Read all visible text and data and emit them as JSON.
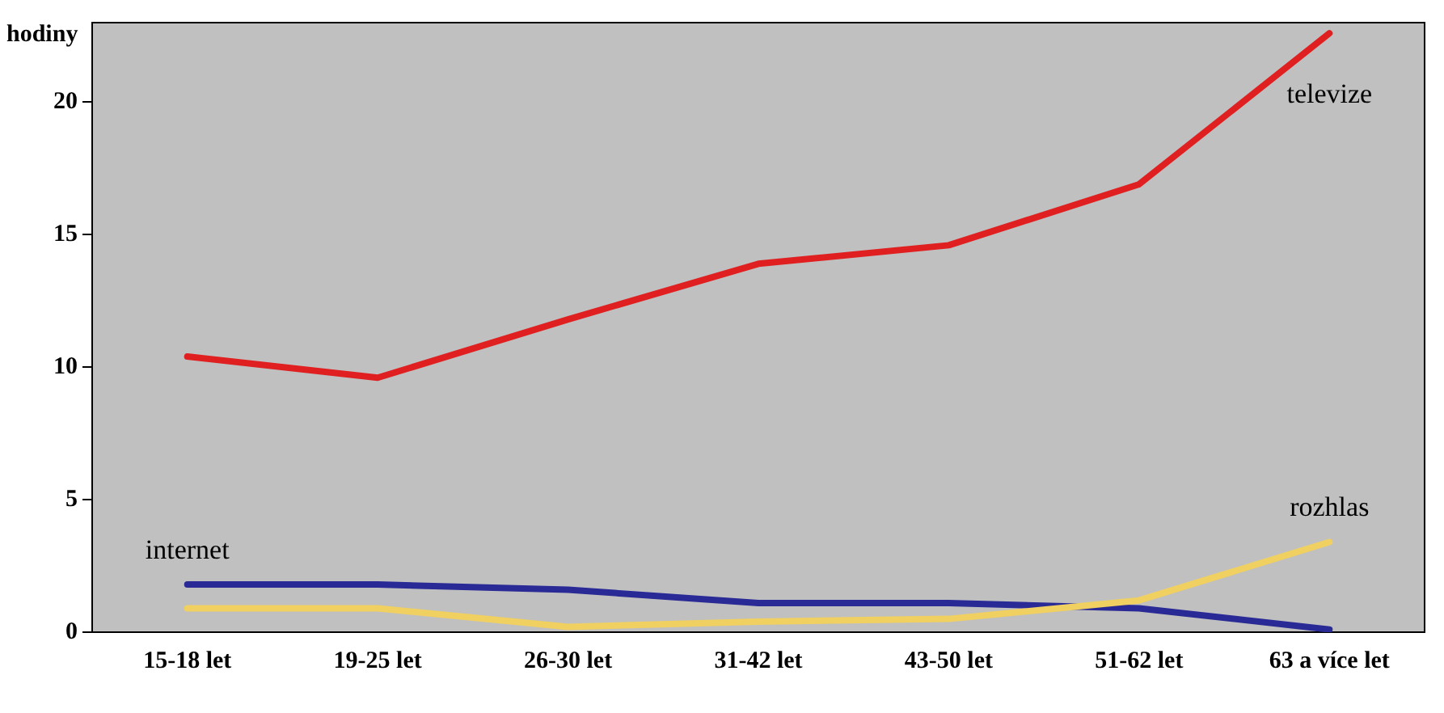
{
  "chart_data": {
    "type": "line",
    "ylabel": "hodiny",
    "categories": [
      "15-18 let",
      "19-25 let",
      "26-30 let",
      "31-42 let",
      "43-50 let",
      "51-62 let",
      "63 a více let"
    ],
    "series": [
      {
        "name": "televize",
        "color": "#e02020",
        "values": [
          10.4,
          9.6,
          11.8,
          13.9,
          14.6,
          16.9,
          22.6
        ]
      },
      {
        "name": "rozhlas",
        "color": "#f0d060",
        "values": [
          0.9,
          0.9,
          0.2,
          0.4,
          0.5,
          1.2,
          3.4
        ]
      },
      {
        "name": "internet",
        "color": "#2a2a96",
        "values": [
          1.8,
          1.8,
          1.6,
          1.1,
          1.1,
          0.9,
          0.1
        ]
      }
    ],
    "ylim": [
      0,
      23
    ],
    "yticks": [
      0,
      5,
      10,
      15,
      20
    ],
    "grid": false,
    "legend": false,
    "marker": "none",
    "line_style": "solid"
  }
}
